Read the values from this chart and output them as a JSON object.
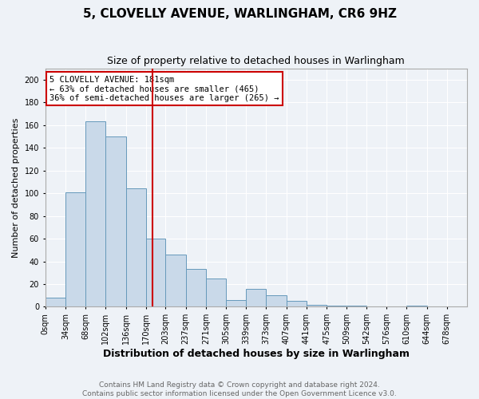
{
  "title": "5, CLOVELLY AVENUE, WARLINGHAM, CR6 9HZ",
  "subtitle": "Size of property relative to detached houses in Warlingham",
  "xlabel": "Distribution of detached houses by size in Warlingham",
  "ylabel": "Number of detached properties",
  "footer_line1": "Contains HM Land Registry data © Crown copyright and database right 2024.",
  "footer_line2": "Contains public sector information licensed under the Open Government Licence v3.0.",
  "bar_left_edges": [
    0,
    34,
    68,
    102,
    136,
    170,
    203,
    237,
    271,
    305,
    339,
    373,
    407,
    441,
    475,
    509,
    542,
    576,
    610,
    644
  ],
  "bar_widths": [
    34,
    34,
    34,
    34,
    34,
    33,
    34,
    34,
    34,
    34,
    34,
    34,
    34,
    34,
    34,
    33,
    34,
    34,
    34,
    34
  ],
  "bar_heights": [
    8,
    101,
    163,
    150,
    104,
    60,
    46,
    33,
    25,
    6,
    16,
    10,
    5,
    2,
    1,
    1,
    0,
    0,
    1,
    0
  ],
  "bar_color": "#c9d9e9",
  "bar_edgecolor": "#6699bb",
  "property_size": 181,
  "annotation_text": "5 CLOVELLY AVENUE: 181sqm\n← 63% of detached houses are smaller (465)\n36% of semi-detached houses are larger (265) →",
  "vline_color": "#cc0000",
  "annotation_box_edgecolor": "#cc0000",
  "annotation_box_facecolor": "#ffffff",
  "ylim": [
    0,
    210
  ],
  "xlim": [
    0,
    712
  ],
  "background_color": "#eef2f7",
  "tick_labels": [
    "0sqm",
    "34sqm",
    "68sqm",
    "102sqm",
    "136sqm",
    "170sqm",
    "203sqm",
    "237sqm",
    "271sqm",
    "305sqm",
    "339sqm",
    "373sqm",
    "407sqm",
    "441sqm",
    "475sqm",
    "509sqm",
    "542sqm",
    "576sqm",
    "610sqm",
    "644sqm",
    "678sqm"
  ],
  "tick_positions": [
    0,
    34,
    68,
    102,
    136,
    170,
    203,
    237,
    271,
    305,
    339,
    373,
    407,
    441,
    475,
    509,
    542,
    576,
    610,
    644,
    678
  ],
  "yticks": [
    0,
    20,
    40,
    60,
    80,
    100,
    120,
    140,
    160,
    180,
    200
  ],
  "title_fontsize": 11,
  "subtitle_fontsize": 9,
  "ylabel_fontsize": 8,
  "xlabel_fontsize": 9,
  "tick_fontsize": 7,
  "footer_fontsize": 6.5,
  "footer_color": "#666666",
  "grid_color": "#ffffff",
  "spine_color": "#aaaaaa"
}
